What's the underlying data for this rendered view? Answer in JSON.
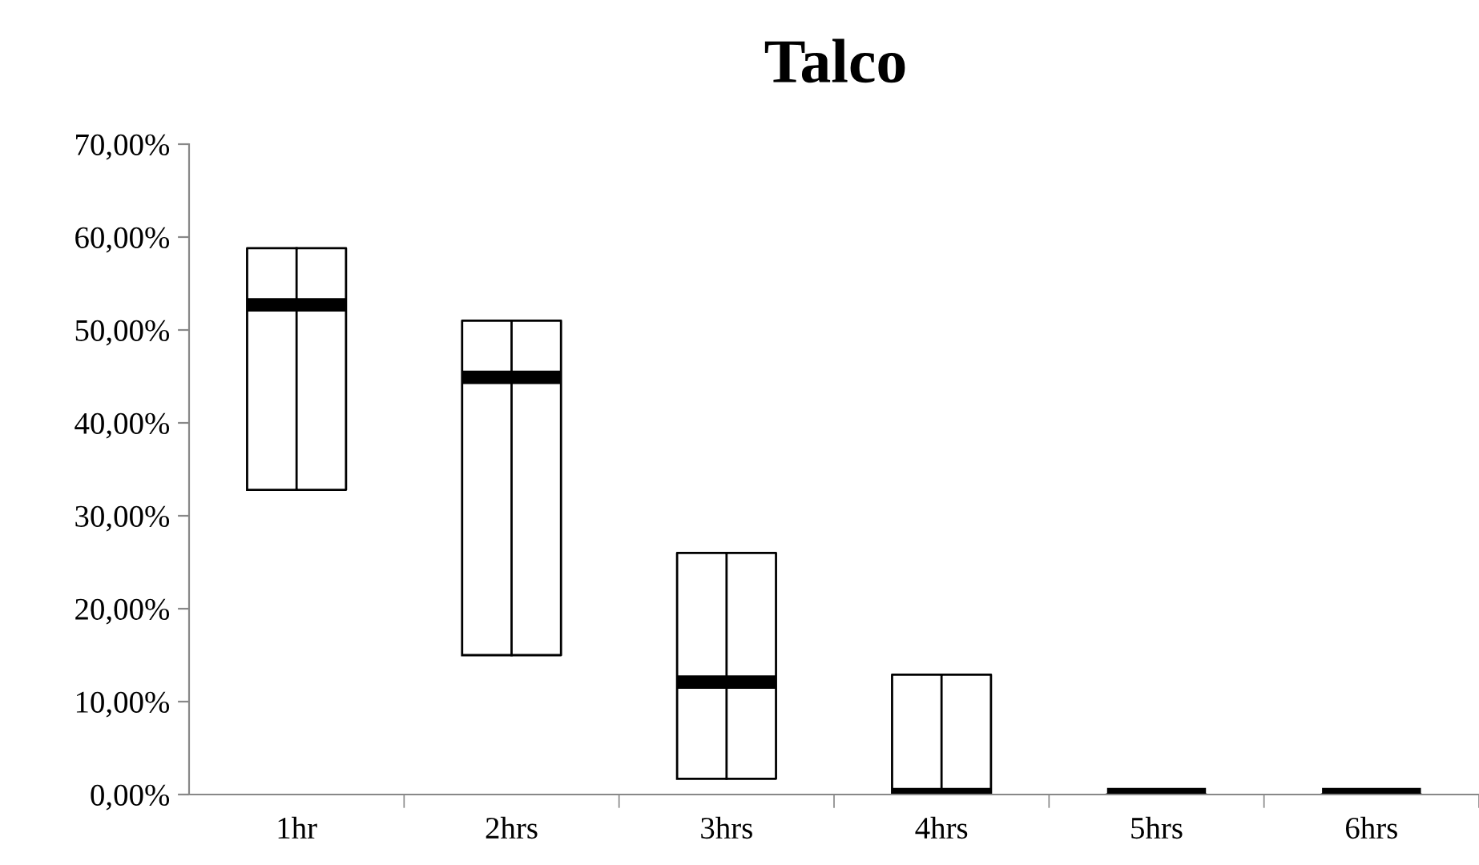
{
  "chart_data": {
    "type": "box",
    "title": "Talco",
    "categories": [
      "1hr",
      "2hrs",
      "3hrs",
      "4hrs",
      "5hrs",
      "6hrs"
    ],
    "boxes": [
      {
        "low": 32.8,
        "q1": 32.8,
        "median": 52.7,
        "q3": 58.8,
        "high": 58.8
      },
      {
        "low": 15,
        "q1": 15,
        "median": 44.9,
        "q3": 51,
        "high": 51
      },
      {
        "low": 1.7,
        "q1": 1.7,
        "median": 12.1,
        "q3": 26,
        "high": 26
      },
      {
        "low": 0,
        "q1": 0,
        "median": 0,
        "q3": 12.9,
        "high": 12.9
      },
      {
        "low": 0,
        "q1": 0,
        "median": 0,
        "q3": 0,
        "high": 0
      },
      {
        "low": 0,
        "q1": 0,
        "median": 0,
        "q3": 0,
        "high": 0
      }
    ],
    "ylim": [
      0,
      70
    ],
    "yticks": [
      {
        "value": 0,
        "label": "0,00%"
      },
      {
        "value": 10,
        "label": "10,00%"
      },
      {
        "value": 20,
        "label": "20,00%"
      },
      {
        "value": 30,
        "label": "30,00%"
      },
      {
        "value": 40,
        "label": "40,00%"
      },
      {
        "value": 50,
        "label": "50,00%"
      },
      {
        "value": 60,
        "label": "60,00%"
      },
      {
        "value": 70,
        "label": "70,00%"
      }
    ],
    "grid": false,
    "legend": false
  }
}
